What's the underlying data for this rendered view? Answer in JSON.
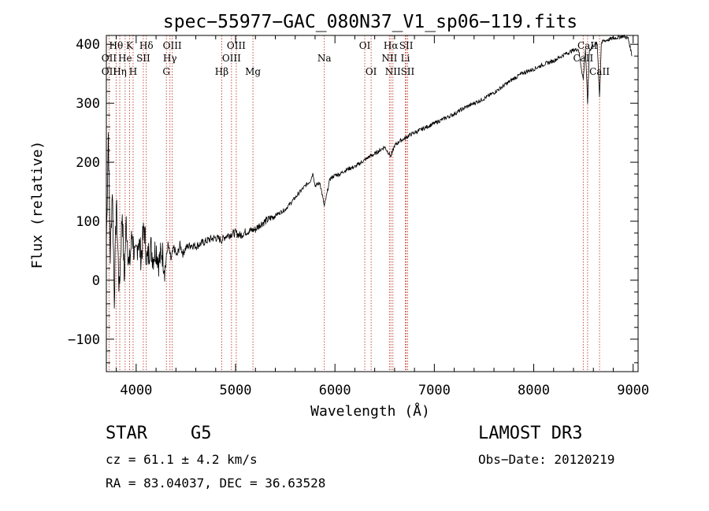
{
  "chart_data": {
    "type": "line",
    "title": "spec−55977−GAC_080N37_V1_sp06−119.fits",
    "xlabel": "Wavelength (Å)",
    "ylabel": "Flux (relative)",
    "xlim": [
      3700,
      9050
    ],
    "ylim": [
      -155,
      415
    ],
    "xticks": [
      4000,
      5000,
      6000,
      7000,
      8000,
      9000
    ],
    "yticks": [
      -100,
      0,
      100,
      200,
      300,
      400
    ],
    "xtick_labels": [
      "4000",
      "5000",
      "6000",
      "7000",
      "8000",
      "9000"
    ],
    "ytick_labels": [
      "−100",
      "0",
      "100",
      "200",
      "300",
      "400"
    ],
    "series": [
      {
        "name": "spectrum",
        "x": [
          3700,
          3720,
          3740,
          3760,
          3780,
          3800,
          3830,
          3860,
          3880,
          3900,
          3930,
          3960,
          3990,
          4020,
          4050,
          4080,
          4110,
          4140,
          4170,
          4200,
          4230,
          4260,
          4290,
          4320,
          4350,
          4380,
          4410,
          4440,
          4470,
          4500,
          4550,
          4600,
          4650,
          4700,
          4750,
          4800,
          4861,
          4900,
          4950,
          5000,
          5050,
          5100,
          5150,
          5200,
          5250,
          5300,
          5350,
          5400,
          5450,
          5500,
          5550,
          5600,
          5650,
          5700,
          5750,
          5780,
          5800,
          5850,
          5893,
          5950,
          6000,
          6050,
          6100,
          6150,
          6200,
          6250,
          6300,
          6350,
          6400,
          6450,
          6500,
          6563,
          6600,
          6650,
          6700,
          6750,
          6800,
          6850,
          6900,
          6950,
          7000,
          7100,
          7200,
          7300,
          7400,
          7500,
          7600,
          7700,
          7800,
          7900,
          8000,
          8100,
          8200,
          8300,
          8400,
          8450,
          8498,
          8520,
          8542,
          8560,
          8600,
          8640,
          8662,
          8680,
          8700,
          8750,
          8800,
          8850,
          8900,
          8950,
          8990
        ],
        "y": [
          60,
          250,
          40,
          160,
          -30,
          130,
          -20,
          120,
          0,
          100,
          20,
          80,
          30,
          70,
          40,
          90,
          30,
          60,
          40,
          55,
          30,
          50,
          20,
          60,
          35,
          55,
          40,
          60,
          45,
          55,
          60,
          58,
          62,
          66,
          70,
          72,
          68,
          75,
          78,
          80,
          76,
          82,
          84,
          86,
          95,
          100,
          105,
          110,
          115,
          120,
          130,
          140,
          150,
          160,
          168,
          182,
          160,
          165,
          125,
          172,
          178,
          180,
          186,
          190,
          192,
          198,
          204,
          210,
          214,
          220,
          226,
          210,
          228,
          236,
          240,
          246,
          250,
          254,
          258,
          262,
          266,
          274,
          282,
          292,
          300,
          308,
          318,
          330,
          342,
          352,
          358,
          366,
          372,
          382,
          390,
          392,
          340,
          393,
          300,
          390,
          398,
          400,
          310,
          402,
          405,
          408,
          410,
          412,
          414,
          410,
          380
        ]
      }
    ],
    "spectral_lines": [
      {
        "name": "Hθ",
        "x": 3798,
        "row": 1
      },
      {
        "name": "OII",
        "x": 3727,
        "row": 2
      },
      {
        "name": "OII",
        "x": 3727,
        "row": 3
      },
      {
        "name": "He",
        "x": 3889,
        "row": 2
      },
      {
        "name": "Hη",
        "x": 3835,
        "row": 3
      },
      {
        "name": "K",
        "x": 3934,
        "row": 1
      },
      {
        "name": "SII",
        "x": 4072,
        "row": 2
      },
      {
        "name": "H",
        "x": 3969,
        "row": 3
      },
      {
        "name": "Hδ",
        "x": 4102,
        "row": 1
      },
      {
        "name": "OIII",
        "x": 4363,
        "row": 1
      },
      {
        "name": "Hγ",
        "x": 4340,
        "row": 2
      },
      {
        "name": "G",
        "x": 4304,
        "row": 3
      },
      {
        "name": "OIII",
        "x": 5007,
        "row": 1
      },
      {
        "name": "OIII",
        "x": 4959,
        "row": 2
      },
      {
        "name": "Hβ",
        "x": 4861,
        "row": 3
      },
      {
        "name": "Mg",
        "x": 5175,
        "row": 3
      },
      {
        "name": "Na",
        "x": 5893,
        "row": 2
      },
      {
        "name": "OI",
        "x": 6300,
        "row": 1
      },
      {
        "name": "OI",
        "x": 6364,
        "row": 3
      },
      {
        "name": "Hα",
        "x": 6563,
        "row": 1
      },
      {
        "name": "NII",
        "x": 6548,
        "row": 2
      },
      {
        "name": "NII",
        "x": 6583,
        "row": 3
      },
      {
        "name": "SII",
        "x": 6717,
        "row": 1
      },
      {
        "name": "Li",
        "x": 6708,
        "row": 2
      },
      {
        "name": "SII",
        "x": 6731,
        "row": 3
      },
      {
        "name": "CaII",
        "x": 8542,
        "row": 1
      },
      {
        "name": "CaII",
        "x": 8498,
        "row": 2
      },
      {
        "name": "CaII",
        "x": 8662,
        "row": 3
      }
    ]
  },
  "info": {
    "class": "STAR",
    "subclass": "G5",
    "survey": "LAMOST DR3",
    "cz": "cz = 61.1 ± 4.2 km/s",
    "obs_date": "Obs−Date: 20120219",
    "coords": "RA =  83.04037, DEC =  36.63528"
  }
}
